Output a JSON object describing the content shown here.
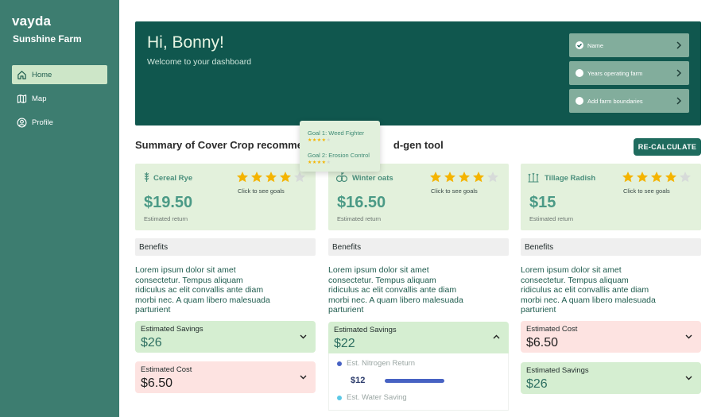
{
  "sidebar": {
    "brand": "vayda",
    "farm": "Sunshine Farm",
    "items": [
      {
        "label": "Home",
        "icon": "home-icon",
        "active": true
      },
      {
        "label": "Map",
        "icon": "map-icon",
        "active": false
      },
      {
        "label": "Profile",
        "icon": "profile-icon",
        "active": false
      }
    ]
  },
  "hero": {
    "greeting": "Hi, Bonny!",
    "subtitle": "Welcome to your dashboard",
    "steps": [
      {
        "label": "Name",
        "done": true
      },
      {
        "label": "Years operating farm",
        "done": false
      },
      {
        "label": "Add farm boundaries",
        "done": false
      }
    ]
  },
  "summary": {
    "title_left": "Summary of Cover Crop recommen",
    "title_right": "d-gen tool",
    "recalc_label": "RE-CALCULATE"
  },
  "tooltip": {
    "goals": [
      {
        "label": "Goal 1: Weed Fighter",
        "rating": 4
      },
      {
        "label": "Goal 2: Erosion Control",
        "rating": 4
      }
    ]
  },
  "crops": [
    {
      "name": "Cereal Rye",
      "icon": "wheat-icon",
      "rating": 4,
      "see_goals": "Click to see goals",
      "price": "$19.50",
      "price_caption": "Estimated return",
      "benefits_label": "Benefits",
      "benefits_text": "Lorem ipsum dolor sit amet consectetur. Tempus aliquam ridiculus ac elit convallis ante diam morbi nec. A quam libero malesuada parturient",
      "accordions": [
        {
          "label": "Estimated Savings",
          "value": "$26",
          "tone": "green"
        },
        {
          "label": "Estimated Cost",
          "value": "$6.50",
          "tone": "pink"
        }
      ]
    },
    {
      "name": "Winter oats",
      "icon": "oats-icon",
      "rating": 4,
      "see_goals": "Click to see goals",
      "price": "$16.50",
      "price_caption": "Estimated return",
      "benefits_label": "Benefits",
      "benefits_text": "Lorem ipsum dolor sit amet consectetur. Tempus aliquam ridiculus ac elit convallis ante diam morbi nec. A quam libero malesuada parturient",
      "accordions": [
        {
          "label": "Estimated Savings",
          "value": "$22",
          "tone": "green"
        }
      ],
      "expanded": {
        "rows": [
          {
            "label": "Est. Nitrogen Return",
            "color": "#4762c3"
          },
          {
            "label": "Est. Water Saving",
            "color": "#5bc8e6"
          }
        ],
        "nitrogen_value": "$12",
        "nitrogen_level_percent": 100
      }
    },
    {
      "name": "Tillage Radish",
      "icon": "radish-icon",
      "rating": 4,
      "see_goals": "Click to see goals",
      "price": "$15",
      "price_caption": "Estimated return",
      "benefits_label": "Benefits",
      "benefits_text": "Lorem ipsum dolor sit amet consectetur. Tempus aliquam ridiculus ac elit convallis ante diam morbi nec. A quam libero malesuada parturient",
      "accordions": [
        {
          "label": "Estimated Cost",
          "value": "$6.50",
          "tone": "pink"
        },
        {
          "label": "Estimated Savings",
          "value": "$26",
          "tone": "green"
        }
      ]
    }
  ],
  "colors": {
    "sidebar": "#3d7d70",
    "hero": "#10574e",
    "accent": "#1f6b5e",
    "star": "#f4b400"
  }
}
